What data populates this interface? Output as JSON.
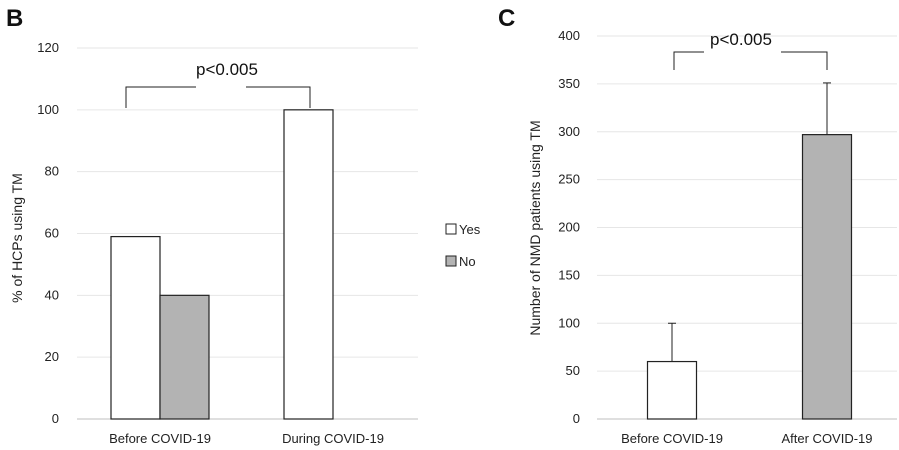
{
  "chart_data": [
    {
      "type": "bar",
      "panel_label": "B",
      "categories": [
        "Before COVID-19",
        "During COVID-19"
      ],
      "series": [
        {
          "name": "Yes",
          "values": [
            59,
            100
          ],
          "color": "#ffffff"
        },
        {
          "name": "No",
          "values": [
            40,
            0
          ],
          "color": "#b3b3b3"
        }
      ],
      "ylabel": "% of HCPs using TM",
      "ylim": [
        0,
        120
      ],
      "yticks": [
        0,
        20,
        40,
        60,
        80,
        100,
        120
      ],
      "grid": true,
      "legend_position": "right",
      "annotation": "p<0.005"
    },
    {
      "type": "bar",
      "panel_label": "C",
      "categories": [
        "Before COVID-19",
        "After COVID-19"
      ],
      "values": [
        60,
        297
      ],
      "error_upper": [
        100,
        351
      ],
      "colors": [
        "#ffffff",
        "#b3b3b3"
      ],
      "ylabel": "Number of NMD patients using TM",
      "ylim": [
        0,
        400
      ],
      "yticks": [
        0,
        50,
        100,
        150,
        200,
        250,
        300,
        350,
        400
      ],
      "grid": true,
      "annotation": "p<0.005"
    }
  ]
}
